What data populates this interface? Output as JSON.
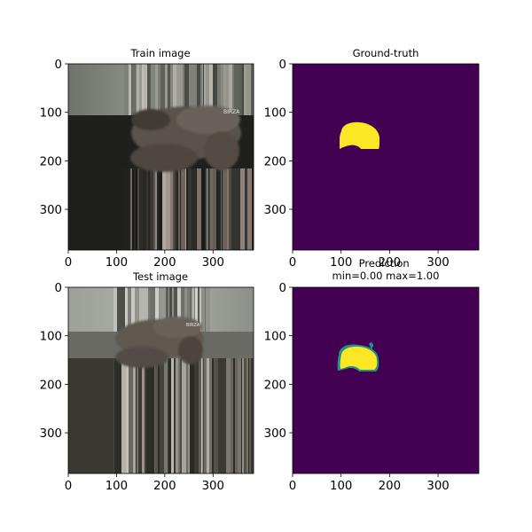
{
  "figure": {
    "background": "#ffffff"
  },
  "chart_data": [
    {
      "type": "heatmap",
      "subtype": "image",
      "title": "Train image",
      "title_lines": [
        "Train image"
      ],
      "image_size": [
        384,
        384
      ],
      "xticks": [
        0,
        100,
        200,
        300
      ],
      "yticks": [
        0,
        100,
        200,
        300
      ],
      "content": "stretched photo of several deer; upper and lower regions are vertical streaks",
      "colors": {
        "top_band": "#7a7e76",
        "bottom_band": "#1f1f1d",
        "subject": "#5a524c"
      },
      "annotation_text": "BIRZA"
    },
    {
      "type": "heatmap",
      "subtype": "mask",
      "title": "Ground-truth",
      "title_lines": [
        "Ground-truth"
      ],
      "image_size": [
        384,
        384
      ],
      "xticks": [
        0,
        100,
        200,
        300
      ],
      "yticks": [
        0,
        100,
        200,
        300
      ],
      "colormap": "viridis",
      "value_range": [
        0,
        1
      ],
      "colors": {
        "background": "#440154",
        "foreground": "#fde725"
      },
      "mask_region_data_units": {
        "x": [
          100,
          180
        ],
        "y": [
          125,
          175
        ]
      }
    },
    {
      "type": "heatmap",
      "subtype": "image",
      "title": "Test image",
      "title_lines": [
        "Test image"
      ],
      "image_size": [
        384,
        384
      ],
      "xticks": [
        0,
        100,
        200,
        300
      ],
      "yticks": [
        0,
        100,
        200,
        300
      ],
      "content": "stretched photo of several deer; upper and lower regions are vertical streaks",
      "colors": {
        "top_band": "#9ea29a",
        "bottom_band": "#3a3a33",
        "subject": "#5f5850"
      },
      "annotation_text": "BIRZA"
    },
    {
      "type": "heatmap",
      "subtype": "mask",
      "title": "Prediction\nmin=0.00 max=1.00",
      "title_lines": [
        "Prediction",
        "min=0.00 max=1.00"
      ],
      "image_size": [
        384,
        384
      ],
      "xticks": [
        0,
        100,
        200,
        300
      ],
      "yticks": [
        0,
        100,
        200,
        300
      ],
      "colormap": "viridis",
      "value_range": [
        0.0,
        1.0
      ],
      "min": 0.0,
      "max": 1.0,
      "colors": {
        "background": "#440154",
        "foreground": "#fde725",
        "edge": "#21918c"
      },
      "mask_region_data_units": {
        "x": [
          95,
          180
        ],
        "y": [
          125,
          175
        ]
      }
    }
  ]
}
